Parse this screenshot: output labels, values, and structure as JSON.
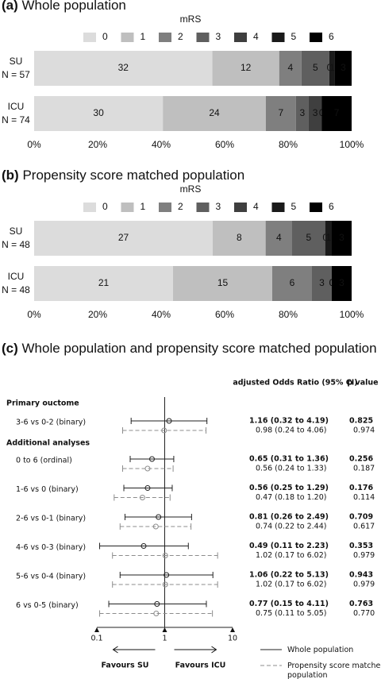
{
  "chart_data": [
    {
      "type": "bar",
      "orientation": "horizontal",
      "stacked": "percent",
      "panel": "(a)",
      "title": "Whole population",
      "legend_title": "mRS",
      "categories": [
        "SU\nN = 57",
        "ICU\nN = 74"
      ],
      "series": [
        {
          "name": "0",
          "color": "#dcdcdc",
          "values": [
            32,
            30
          ]
        },
        {
          "name": "1",
          "color": "#bfbfbf",
          "values": [
            12,
            24
          ]
        },
        {
          "name": "2",
          "color": "#7f7f7f",
          "values": [
            4,
            7
          ]
        },
        {
          "name": "3",
          "color": "#5f5f5f",
          "values": [
            5,
            3
          ]
        },
        {
          "name": "4",
          "color": "#3f3f3f",
          "values": [
            0,
            3
          ]
        },
        {
          "name": "5",
          "color": "#1a1a1a",
          "values": [
            1,
            0
          ]
        },
        {
          "name": "6",
          "color": "#000000",
          "values": [
            3,
            7
          ]
        }
      ],
      "xlim": [
        0,
        100
      ],
      "xticks": [
        {
          "value": 0,
          "label": "0%"
        },
        {
          "value": 20,
          "label": "20%"
        },
        {
          "value": 40,
          "label": "40%"
        },
        {
          "value": 60,
          "label": "60%"
        },
        {
          "value": 80,
          "label": "80%"
        },
        {
          "value": 100,
          "label": "100%"
        }
      ]
    },
    {
      "type": "bar",
      "orientation": "horizontal",
      "stacked": "percent",
      "panel": "(b)",
      "title": "Propensity score matched population",
      "legend_title": "mRS",
      "categories": [
        "SU\nN = 48",
        "ICU\nN = 48"
      ],
      "series": [
        {
          "name": "0",
          "color": "#dcdcdc",
          "values": [
            27,
            21
          ]
        },
        {
          "name": "1",
          "color": "#bfbfbf",
          "values": [
            8,
            15
          ]
        },
        {
          "name": "2",
          "color": "#7f7f7f",
          "values": [
            4,
            6
          ]
        },
        {
          "name": "3",
          "color": "#5f5f5f",
          "values": [
            5,
            3
          ]
        },
        {
          "name": "4",
          "color": "#3f3f3f",
          "values": [
            0,
            0
          ]
        },
        {
          "name": "5",
          "color": "#1a1a1a",
          "values": [
            1,
            0
          ]
        },
        {
          "name": "6",
          "color": "#000000",
          "values": [
            3,
            3
          ]
        }
      ],
      "xlim": [
        0,
        100
      ],
      "xticks": [
        {
          "value": 0,
          "label": "0%"
        },
        {
          "value": 20,
          "label": "20%"
        },
        {
          "value": 40,
          "label": "40%"
        },
        {
          "value": 60,
          "label": "60%"
        },
        {
          "value": 80,
          "label": "80%"
        },
        {
          "value": 100,
          "label": "100%"
        }
      ]
    },
    {
      "type": "forest",
      "panel": "(c)",
      "title": "Whole population and propensity score matched population",
      "column_headers": [
        "adjusted Odds Ratio (95% CI)",
        "p value"
      ],
      "groups": [
        {
          "name": "Primary ouctome",
          "categories": [
            "3-6 vs 0-2 (binary)"
          ]
        },
        {
          "name": "Additional analyses",
          "categories": [
            "0 to 6 (ordinal)",
            "1-6 vs 0 (binary)",
            "2-6 vs 0-1 (binary)",
            "4-6 vs 0-3 (binary)",
            "5-6 vs 0-4 (binary)",
            "6 vs 0-5 (binary)"
          ]
        }
      ],
      "series": [
        {
          "name": "Whole population",
          "color": "#222222",
          "style": "solid",
          "values": [
            1.16,
            0.65,
            0.56,
            0.81,
            0.49,
            1.06,
            0.77
          ],
          "lower": [
            0.32,
            0.31,
            0.25,
            0.26,
            0.11,
            0.22,
            0.15
          ],
          "upper": [
            4.19,
            1.36,
            1.29,
            2.49,
            2.23,
            5.13,
            4.11
          ],
          "value_labels": [
            "1.16 (0.32 to 4.19)",
            "0.65 (0.31 to 1.36)",
            "0.56 (0.25 to 1.29)",
            "0.81 (0.26 to 2.49)",
            "0.49 (0.11 to 2.23)",
            "1.06 (0.22 to 5.13)",
            "0.77 (0.15 to 4.11)"
          ],
          "p_values": [
            "0.825",
            "0.256",
            "0.176",
            "0.709",
            "0.353",
            "0.943",
            "0.763"
          ]
        },
        {
          "name": "Propensity score matched population",
          "color": "#8c8c8c",
          "style": "dashed",
          "values": [
            0.98,
            0.56,
            0.47,
            0.74,
            1.02,
            1.02,
            0.75
          ],
          "lower": [
            0.24,
            0.24,
            0.18,
            0.22,
            0.17,
            0.17,
            0.11
          ],
          "upper": [
            4.06,
            1.33,
            1.2,
            2.44,
            6.02,
            6.02,
            5.05
          ],
          "value_labels": [
            "0.98 (0.24 to 4.06)",
            "0.56 (0.24 to 1.33)",
            "0.47 (0.18 to 1.20)",
            "0.74 (0.22 to 2.44)",
            "1.02 (0.17 to 6.02)",
            "1.02 (0.17 to 6.02)",
            "0.75 (0.11 to 5.05)"
          ],
          "p_values": [
            "0.974",
            "0.187",
            "0.114",
            "0.617",
            "0.979",
            "0.979",
            "0.770"
          ]
        }
      ],
      "xscale": "log",
      "xlim": [
        0.1,
        10
      ],
      "xticks": [
        0.1,
        1,
        10
      ],
      "reference": 1,
      "x_labels": [
        "Favours SU",
        "Favours ICU"
      ]
    }
  ]
}
